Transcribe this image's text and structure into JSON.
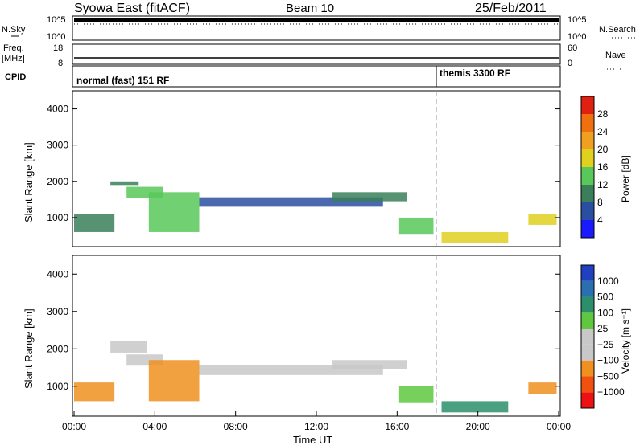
{
  "header": {
    "station": "Syowa East (fitACF)",
    "beam": "Beam 10",
    "date": "25/Feb/2011"
  },
  "top_panels": {
    "nsky_label": "N.Sky",
    "nsky_ticks": [
      "10^5",
      "10^0"
    ],
    "nsearch_label": "N.Search",
    "nsearch_ticks": [
      "10^5",
      "10^0"
    ],
    "freq_label": "Freq.",
    "freq_unit": "[MHz]",
    "freq_ticks": [
      "18",
      "8"
    ],
    "nave_label": "Nave",
    "nave_ticks": [
      "60",
      "0"
    ],
    "cpid_label": "CPID",
    "cpid_modes": [
      {
        "label": "normal (fast) 151 RF",
        "start_hour": 0
      },
      {
        "label": "themis 3300 RF",
        "start_hour": 18
      }
    ],
    "freq_mhz": 11.2,
    "nave": 12
  },
  "colors": {
    "power_scale": [
      "#1a1aff",
      "#2a4fa0",
      "#3a7f5a",
      "#58c858",
      "#e0d020",
      "#f0a020",
      "#f07010",
      "#e02010"
    ],
    "velocity_scale": [
      "#ee1111",
      "#f05010",
      "#f09020",
      "#c8c8c8",
      "#c8c8c8",
      "#60c840",
      "#2a8f6a",
      "#2a6fb0",
      "#2040c0"
    ]
  },
  "chart_data": [
    {
      "type": "heatmap",
      "name": "power",
      "xlabel": "",
      "ylabel": "Slant Range [km]",
      "xlim": [
        0,
        24
      ],
      "ylim": [
        200,
        4500
      ],
      "yticks": [
        "1000",
        "2000",
        "3000",
        "4000"
      ],
      "colorbar_label": "Power [dB]",
      "colorbar_ticks": [
        "4",
        "8",
        "12",
        "16",
        "20",
        "24",
        "28"
      ],
      "regions": [
        {
          "t0": 0.0,
          "t1": 2.0,
          "r0": 600,
          "r1": 1100,
          "v": 10
        },
        {
          "t0": 1.8,
          "t1": 3.2,
          "r0": 1900,
          "r1": 2000,
          "v": 8
        },
        {
          "t0": 2.6,
          "t1": 4.4,
          "r0": 1550,
          "r1": 1850,
          "v": 14
        },
        {
          "t0": 3.7,
          "t1": 6.2,
          "r0": 600,
          "r1": 1700,
          "v": 12
        },
        {
          "t0": 6.2,
          "t1": 15.3,
          "r0": 1300,
          "r1": 1560,
          "v": 6
        },
        {
          "t0": 12.8,
          "t1": 16.5,
          "r0": 1450,
          "r1": 1700,
          "v": 10
        },
        {
          "t0": 16.1,
          "t1": 17.8,
          "r0": 550,
          "r1": 1000,
          "v": 12
        },
        {
          "t0": 18.2,
          "t1": 21.5,
          "r0": 300,
          "r1": 600,
          "v": 16
        },
        {
          "t0": 22.5,
          "t1": 23.9,
          "r0": 800,
          "r1": 1100,
          "v": 18
        }
      ]
    },
    {
      "type": "heatmap",
      "name": "velocity",
      "xlabel": "Time UT",
      "ylabel": "Slant Range [km]",
      "xlim": [
        0,
        24
      ],
      "ylim": [
        200,
        4500
      ],
      "xticks": [
        "00:00",
        "04:00",
        "08:00",
        "12:00",
        "16:00",
        "20:00",
        "00:00"
      ],
      "yticks": [
        "1000",
        "2000",
        "3000",
        "4000"
      ],
      "colorbar_label": "Velocity [m s⁻¹]",
      "colorbar_ticks": [
        "1000",
        "500",
        "100",
        "25",
        "−25",
        "−100",
        "−500",
        "−1000"
      ],
      "regions": [
        {
          "t0": 0.0,
          "t1": 2.0,
          "r0": 600,
          "r1": 1100,
          "v": -300
        },
        {
          "t0": 1.8,
          "t1": 3.6,
          "r0": 1900,
          "r1": 2200,
          "v": 0
        },
        {
          "t0": 2.6,
          "t1": 4.4,
          "r0": 1550,
          "r1": 1850,
          "v": 0
        },
        {
          "t0": 3.7,
          "t1": 6.2,
          "r0": 600,
          "r1": 1700,
          "v": -200
        },
        {
          "t0": 6.2,
          "t1": 15.3,
          "r0": 1300,
          "r1": 1560,
          "v": 0
        },
        {
          "t0": 12.8,
          "t1": 16.5,
          "r0": 1450,
          "r1": 1700,
          "v": 0
        },
        {
          "t0": 16.1,
          "t1": 17.8,
          "r0": 550,
          "r1": 1000,
          "v": 80
        },
        {
          "t0": 18.2,
          "t1": 21.5,
          "r0": 300,
          "r1": 600,
          "v": 400
        },
        {
          "t0": 22.5,
          "t1": 23.9,
          "r0": 800,
          "r1": 1100,
          "v": -200
        }
      ]
    }
  ]
}
